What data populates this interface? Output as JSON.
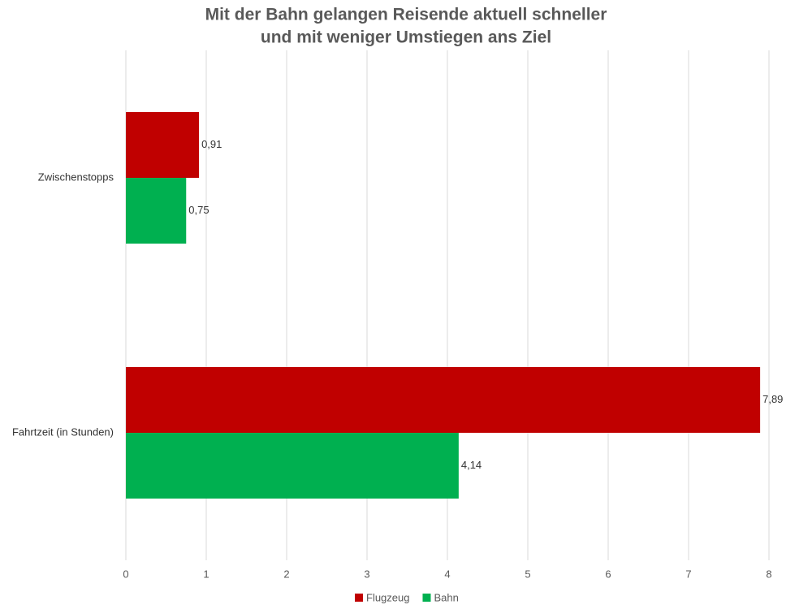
{
  "chart_data": {
    "type": "hbar",
    "title": [
      "Mit der Bahn gelangen Reisende aktuell schneller",
      "und mit weniger Umstiegen ans Ziel"
    ],
    "categories": [
      "Zwischenstopps",
      "Fahrtzeit (in Stunden)"
    ],
    "series": [
      {
        "name": "Flugzeug",
        "color": "#c00000",
        "values": [
          0.91,
          7.89
        ],
        "value_labels": [
          "0,91",
          "7,89"
        ]
      },
      {
        "name": "Bahn",
        "color": "#00b050",
        "values": [
          0.75,
          4.14
        ],
        "value_labels": [
          "0,75",
          "4,14"
        ]
      }
    ],
    "xlim": [
      0,
      8
    ],
    "xticks": [
      0,
      1,
      2,
      3,
      4,
      5,
      6,
      7,
      8
    ],
    "grid": true,
    "legend": "bottom"
  }
}
